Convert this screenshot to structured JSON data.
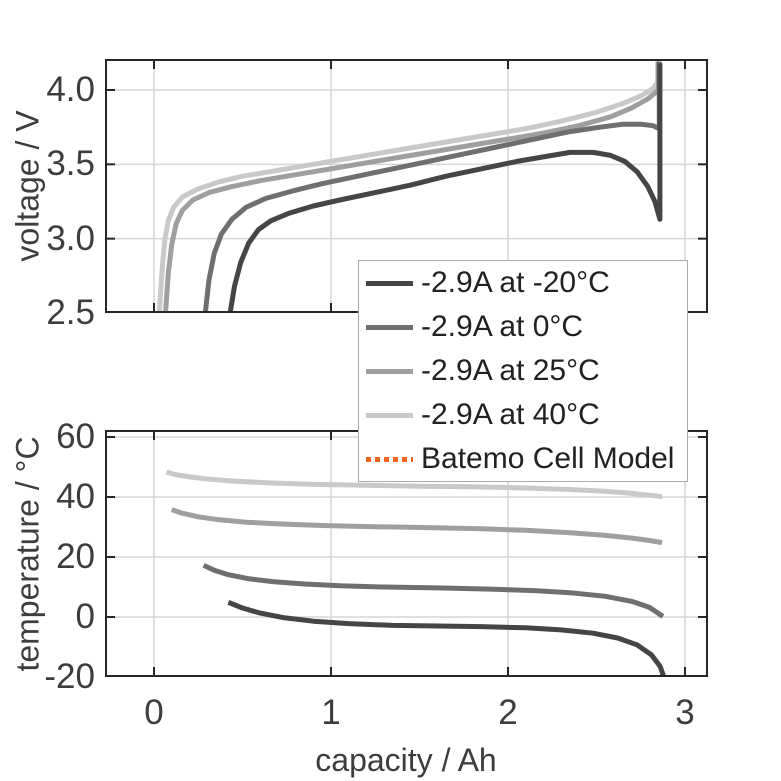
{
  "styles": {
    "background": "#ffffff",
    "axis_color": "#262626",
    "grid_color": "#d6d6d6",
    "tick_label_color": "#3d3d3d",
    "legend_border_color": "#ababab",
    "model_orange": "#f26419"
  },
  "legend": {
    "items": [
      {
        "label": "-2.9A at -20°C",
        "style": "solid",
        "color": "#454545"
      },
      {
        "label": "-2.9A at 0°C",
        "style": "solid",
        "color": "#6f6f6f"
      },
      {
        "label": "-2.9A at 25°C",
        "style": "solid",
        "color": "#9f9f9f"
      },
      {
        "label": "-2.9A at 40°C",
        "style": "solid",
        "color": "#c9c9c9"
      },
      {
        "label": "Batemo Cell Model",
        "style": "dotted",
        "color": "#f26419"
      }
    ]
  },
  "chart_data": [
    {
      "type": "line",
      "title": "",
      "xlabel": "",
      "ylabel": "voltage / V",
      "xlim": [
        -0.2768,
        3.1299
      ],
      "ylim": [
        2.5,
        4.2085
      ],
      "xticks": [
        0,
        1,
        2,
        3
      ],
      "xtick_labels": null,
      "yticks": [
        2.5,
        3.0,
        3.5,
        4.0
      ],
      "ytick_labels": [
        "2.5",
        "3.0",
        "3.5",
        "4.0"
      ],
      "grid": true,
      "legend_position": "below-right-overlay",
      "series": [
        {
          "name": "-2.9A at 40°C",
          "color": "#c9c9c9",
          "points": [
            [
              0.03,
              2.5
            ],
            [
              0.045,
              2.78
            ],
            [
              0.06,
              2.98
            ],
            [
              0.08,
              3.12
            ],
            [
              0.11,
              3.21
            ],
            [
              0.16,
              3.28
            ],
            [
              0.24,
              3.33
            ],
            [
              0.36,
              3.38
            ],
            [
              0.5,
              3.42
            ],
            [
              0.7,
              3.46
            ],
            [
              0.9,
              3.5
            ],
            [
              1.1,
              3.54
            ],
            [
              1.3,
              3.58
            ],
            [
              1.5,
              3.62
            ],
            [
              1.7,
              3.66
            ],
            [
              1.9,
              3.7
            ],
            [
              2.1,
              3.74
            ],
            [
              2.3,
              3.79
            ],
            [
              2.5,
              3.85
            ],
            [
              2.65,
              3.91
            ],
            [
              2.75,
              3.96
            ],
            [
              2.82,
              4.01
            ],
            [
              2.845,
              4.05
            ],
            [
              2.845,
              4.2
            ]
          ]
        },
        {
          "name": "-2.9A at 25°C",
          "color": "#9f9f9f",
          "points": [
            [
              0.065,
              2.5
            ],
            [
              0.08,
              2.76
            ],
            [
              0.1,
              2.96
            ],
            [
              0.125,
              3.1
            ],
            [
              0.16,
              3.19
            ],
            [
              0.22,
              3.26
            ],
            [
              0.31,
              3.31
            ],
            [
              0.44,
              3.35
            ],
            [
              0.6,
              3.39
            ],
            [
              0.8,
              3.43
            ],
            [
              1.0,
              3.47
            ],
            [
              1.2,
              3.51
            ],
            [
              1.4,
              3.55
            ],
            [
              1.6,
              3.59
            ],
            [
              1.8,
              3.63
            ],
            [
              2.0,
              3.67
            ],
            [
              2.2,
              3.71
            ],
            [
              2.4,
              3.76
            ],
            [
              2.58,
              3.82
            ],
            [
              2.7,
              3.88
            ],
            [
              2.79,
              3.94
            ],
            [
              2.85,
              4.0
            ],
            [
              2.85,
              4.19
            ]
          ]
        },
        {
          "name": "-2.9A at 0°C",
          "color": "#6f6f6f",
          "points": [
            [
              0.29,
              2.5
            ],
            [
              0.31,
              2.72
            ],
            [
              0.34,
              2.9
            ],
            [
              0.38,
              3.03
            ],
            [
              0.44,
              3.13
            ],
            [
              0.52,
              3.21
            ],
            [
              0.63,
              3.27
            ],
            [
              0.78,
              3.32
            ],
            [
              0.95,
              3.37
            ],
            [
              1.15,
              3.42
            ],
            [
              1.35,
              3.47
            ],
            [
              1.55,
              3.52
            ],
            [
              1.75,
              3.57
            ],
            [
              1.95,
              3.62
            ],
            [
              2.15,
              3.67
            ],
            [
              2.35,
              3.72
            ],
            [
              2.52,
              3.75
            ],
            [
              2.65,
              3.77
            ],
            [
              2.75,
              3.77
            ],
            [
              2.82,
              3.76
            ],
            [
              2.855,
              3.74
            ],
            [
              2.855,
              4.19
            ]
          ]
        },
        {
          "name": "-2.9A at -20°C",
          "color": "#454545",
          "points": [
            [
              0.43,
              2.5
            ],
            [
              0.455,
              2.68
            ],
            [
              0.49,
              2.84
            ],
            [
              0.535,
              2.97
            ],
            [
              0.59,
              3.06
            ],
            [
              0.66,
              3.12
            ],
            [
              0.76,
              3.17
            ],
            [
              0.9,
              3.22
            ],
            [
              1.05,
              3.26
            ],
            [
              1.25,
              3.31
            ],
            [
              1.45,
              3.36
            ],
            [
              1.65,
              3.42
            ],
            [
              1.85,
              3.47
            ],
            [
              2.05,
              3.52
            ],
            [
              2.2,
              3.55
            ],
            [
              2.35,
              3.58
            ],
            [
              2.48,
              3.58
            ],
            [
              2.58,
              3.56
            ],
            [
              2.66,
              3.52
            ],
            [
              2.73,
              3.45
            ],
            [
              2.79,
              3.35
            ],
            [
              2.83,
              3.25
            ],
            [
              2.858,
              3.13
            ],
            [
              2.858,
              4.18
            ]
          ]
        }
      ]
    },
    {
      "type": "line",
      "title": "",
      "xlabel": "capacity / Ah",
      "ylabel": "temperature / °C",
      "xlim": [
        -0.2768,
        3.1299
      ],
      "ylim": [
        -20,
        62.333
      ],
      "xticks": [
        0,
        1,
        2,
        3
      ],
      "xtick_labels": [
        "0",
        "1",
        "2",
        "3"
      ],
      "yticks": [
        -20,
        0,
        20,
        40,
        60
      ],
      "ytick_labels": [
        "-20",
        "0",
        "20",
        "40",
        "60"
      ],
      "grid": true,
      "series": [
        {
          "name": "-2.9A at 40°C",
          "color": "#c9c9c9",
          "points": [
            [
              0.07,
              48.3
            ],
            [
              0.12,
              47.5
            ],
            [
              0.2,
              46.7
            ],
            [
              0.3,
              46.0
            ],
            [
              0.45,
              45.3
            ],
            [
              0.65,
              44.7
            ],
            [
              0.9,
              44.2
            ],
            [
              1.2,
              43.9
            ],
            [
              1.5,
              43.6
            ],
            [
              1.8,
              43.4
            ],
            [
              2.1,
              43.0
            ],
            [
              2.35,
              42.5
            ],
            [
              2.55,
              41.9
            ],
            [
              2.7,
              41.2
            ],
            [
              2.8,
              40.6
            ],
            [
              2.87,
              40.1
            ]
          ]
        },
        {
          "name": "-2.9A at 25°C",
          "color": "#9f9f9f",
          "points": [
            [
              0.1,
              35.8
            ],
            [
              0.16,
              34.6
            ],
            [
              0.25,
              33.4
            ],
            [
              0.37,
              32.4
            ],
            [
              0.52,
              31.6
            ],
            [
              0.72,
              31.0
            ],
            [
              0.95,
              30.5
            ],
            [
              1.25,
              30.1
            ],
            [
              1.55,
              29.8
            ],
            [
              1.85,
              29.4
            ],
            [
              2.1,
              28.9
            ],
            [
              2.35,
              28.1
            ],
            [
              2.55,
              27.2
            ],
            [
              2.7,
              26.3
            ],
            [
              2.8,
              25.5
            ],
            [
              2.87,
              24.8
            ]
          ]
        },
        {
          "name": "-2.9A at 0°C",
          "color": "#6f6f6f",
          "points": [
            [
              0.28,
              17.2
            ],
            [
              0.34,
              15.6
            ],
            [
              0.42,
              14.1
            ],
            [
              0.53,
              12.8
            ],
            [
              0.67,
              11.8
            ],
            [
              0.85,
              11.0
            ],
            [
              1.05,
              10.4
            ],
            [
              1.3,
              10.0
            ],
            [
              1.6,
              9.7
            ],
            [
              1.9,
              9.3
            ],
            [
              2.15,
              8.8
            ],
            [
              2.35,
              8.1
            ],
            [
              2.55,
              6.9
            ],
            [
              2.7,
              5.2
            ],
            [
              2.8,
              3.2
            ],
            [
              2.86,
              0.8
            ],
            [
              2.875,
              0.2
            ]
          ]
        },
        {
          "name": "-2.9A at -20°C",
          "color": "#454545",
          "points": [
            [
              0.42,
              4.9
            ],
            [
              0.5,
              3.0
            ],
            [
              0.6,
              1.3
            ],
            [
              0.73,
              -0.2
            ],
            [
              0.9,
              -1.4
            ],
            [
              1.1,
              -2.2
            ],
            [
              1.35,
              -2.8
            ],
            [
              1.6,
              -3.0
            ],
            [
              1.85,
              -3.2
            ],
            [
              2.1,
              -3.6
            ],
            [
              2.3,
              -4.3
            ],
            [
              2.48,
              -5.4
            ],
            [
              2.62,
              -7.0
            ],
            [
              2.73,
              -9.3
            ],
            [
              2.81,
              -12.6
            ],
            [
              2.86,
              -16.5
            ],
            [
              2.88,
              -20.0
            ]
          ]
        }
      ]
    }
  ]
}
